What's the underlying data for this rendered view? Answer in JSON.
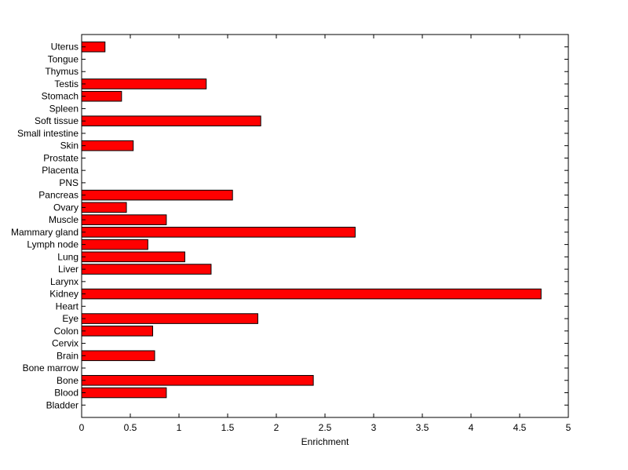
{
  "chart_data": {
    "type": "bar",
    "orientation": "horizontal",
    "categories": [
      "Bladder",
      "Blood",
      "Bone",
      "Bone marrow",
      "Brain",
      "Cervix",
      "Colon",
      "Eye",
      "Heart",
      "Kidney",
      "Larynx",
      "Liver",
      "Lung",
      "Lymph node",
      "Mammary gland",
      "Muscle",
      "Ovary",
      "Pancreas",
      "PNS",
      "Placenta",
      "Prostate",
      "Skin",
      "Small intestine",
      "Soft tissue",
      "Spleen",
      "Stomach",
      "Testis",
      "Thymus",
      "Tongue",
      "Uterus"
    ],
    "values": [
      0,
      0.87,
      2.38,
      0,
      0.75,
      0,
      0.73,
      1.81,
      0,
      4.72,
      0,
      1.33,
      1.06,
      0.68,
      2.81,
      0.87,
      0.46,
      1.55,
      0,
      0,
      0,
      0.53,
      0,
      1.84,
      0,
      0.41,
      1.28,
      0,
      0,
      0.24
    ],
    "xlabel": "Enrichment",
    "xlim": [
      0,
      5
    ],
    "xticks": [
      "0",
      "0.5",
      "1",
      "1.5",
      "2",
      "2.5",
      "3",
      "3.5",
      "4",
      "4.5",
      "5"
    ],
    "grid": false,
    "bar_color": "#ff0000",
    "bar_edge_color": "#000000"
  }
}
